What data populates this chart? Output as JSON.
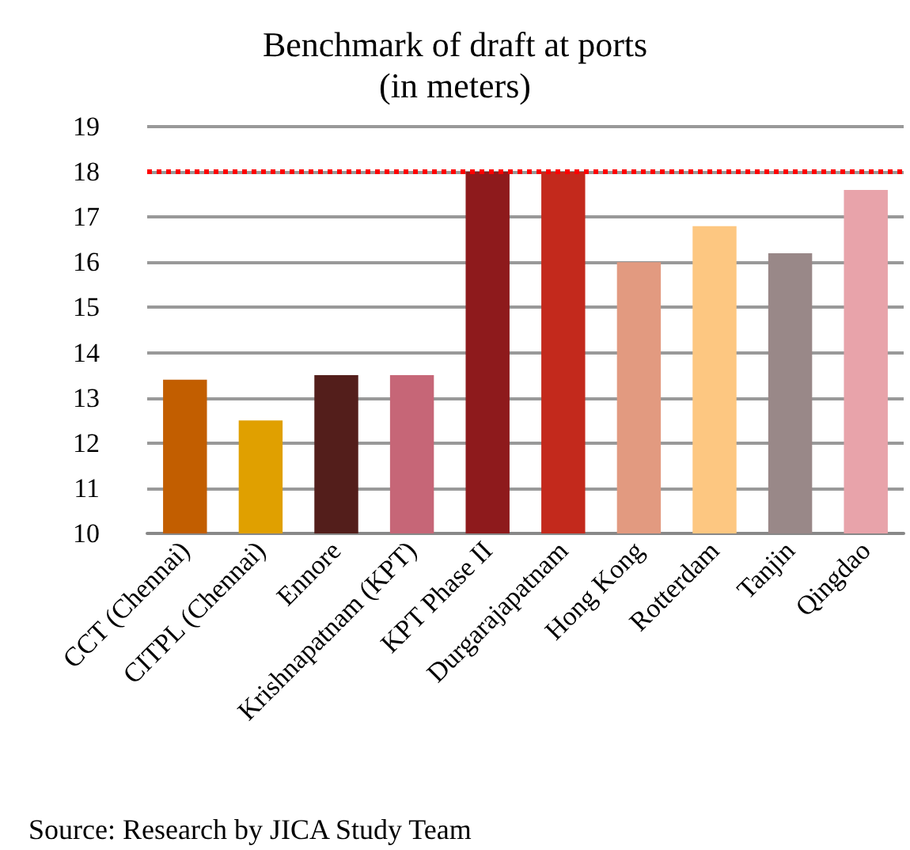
{
  "chart_data": {
    "type": "bar",
    "title": "Benchmark of draft at ports\n(in meters)",
    "categories": [
      "CCT (Chennai)",
      "CITPL (Chennai)",
      "Ennore",
      "Krishnapatnam (KPT)",
      "KPT Phase II",
      "Durgarajapatnam",
      "Hong Kong",
      "Rotterdam",
      "Tanjin",
      "Qingdao"
    ],
    "values": [
      13.4,
      12.5,
      13.5,
      13.5,
      18,
      18,
      16,
      16.8,
      16.2,
      17.6
    ],
    "colors": [
      "#c25e00",
      "#e0a000",
      "#531e1b",
      "#c66677",
      "#8e1a1c",
      "#c3291c",
      "#e29a80",
      "#fdc781",
      "#998888",
      "#e8a3aa"
    ],
    "ylim": [
      10,
      19
    ],
    "yticks": [
      10,
      11,
      12,
      13,
      14,
      15,
      16,
      17,
      18,
      19
    ],
    "grid": "y",
    "ref_lines": [
      {
        "axis": "y",
        "value": 18,
        "color": "#ff0000",
        "line_style": "dotted"
      }
    ],
    "annotations": [
      "Source: Research by JICA Study Team"
    ]
  }
}
